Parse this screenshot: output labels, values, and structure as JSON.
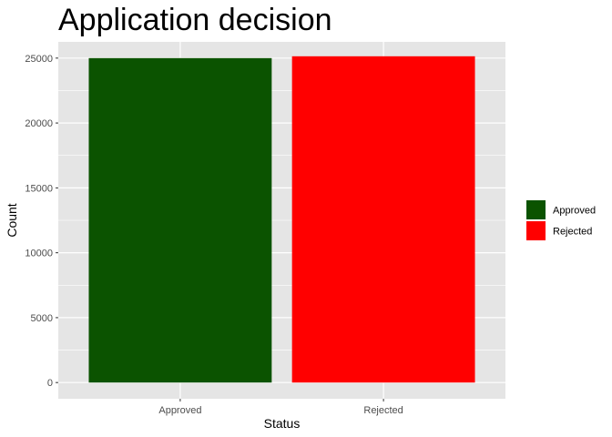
{
  "chart_data": {
    "type": "bar",
    "title": "Application decision",
    "xlabel": "Status",
    "ylabel": "Count",
    "categories": [
      "Approved",
      "Rejected"
    ],
    "values": [
      25000,
      25140
    ],
    "colors": [
      "#0b5300",
      "#ff0000"
    ],
    "ylim": [
      -1250,
      26250
    ],
    "yticks": [
      0,
      5000,
      10000,
      15000,
      20000,
      25000
    ],
    "grid": true,
    "panel_background": "#e5e5e5",
    "gridline_color": "#ffffff",
    "legend": {
      "position": "right",
      "entries": [
        {
          "label": "Approved",
          "color": "#0b5300"
        },
        {
          "label": "Rejected",
          "color": "#ff0000"
        }
      ]
    }
  }
}
